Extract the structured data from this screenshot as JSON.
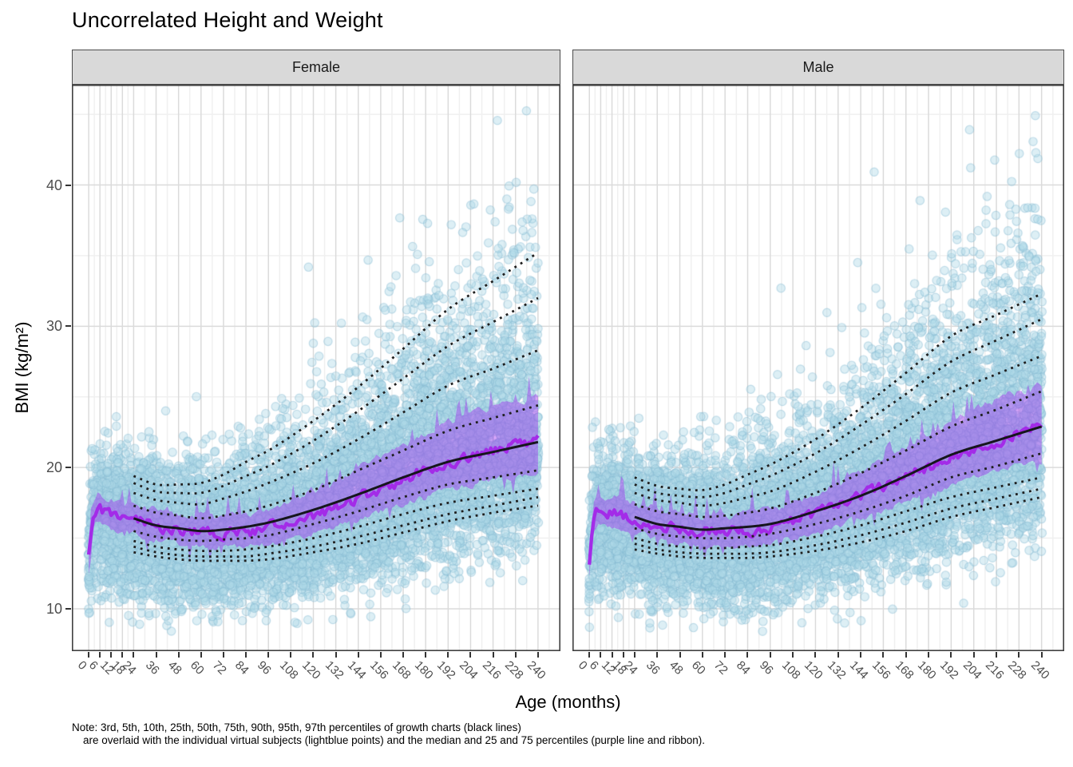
{
  "title": "Uncorrelated Height and Weight",
  "facets": [
    "Female",
    "Male"
  ],
  "axes": {
    "x_title": "Age (months)",
    "y_title": "BMI (kg/m²)",
    "x_tick_labels": [
      0,
      6,
      12,
      18,
      24,
      36,
      48,
      60,
      72,
      84,
      96,
      108,
      120,
      132,
      144,
      156,
      168,
      180,
      192,
      204,
      216,
      228,
      240
    ],
    "y_tick_labels": [
      10,
      20,
      30,
      40
    ]
  },
  "note_line1": "Note: 3rd, 5th, 10th, 25th, 50th, 75th, 90th, 95th, 97th percentiles of growth charts (black lines)",
  "note_line2": "are overlaid with the individual virtual subjects (lightblue points) and the median and 25 and 75 percentiles (purple line and ribbon).",
  "colors": {
    "point_fill": "#ADD8E6",
    "point_stroke": "#82B9D0",
    "point_alpha": 0.42,
    "ribbon": "#A020F0",
    "ribbon_alpha": 0.4,
    "median_line": "#A32BE8",
    "growth_median_line": "#16161D",
    "percentile_dots": "#1F1F1F",
    "strip_bg": "#D9D9D9",
    "strip_border": "#4D4D4D",
    "strip_text": "#1A1A1A",
    "panel_border": "#404040",
    "grid_major": "#DBDBDB",
    "grid_minor": "#F0F0F0",
    "axis_text": "#4D4D4D",
    "title_color": "#000000"
  },
  "chart_data": {
    "type": "scatter",
    "description": "Faceted scatter of simulated BMI vs age with growth-chart percentile curves (black dotted, 50th solid) and subject median/IQR (purple line and ribbon)",
    "layout": {
      "xlim": [
        -9,
        252
      ],
      "ylim": [
        7,
        47.1
      ],
      "x_major": [
        0,
        6,
        12,
        18,
        24,
        36,
        48,
        60,
        72,
        84,
        96,
        108,
        120,
        132,
        144,
        156,
        168,
        180,
        192,
        204,
        216,
        228,
        240
      ],
      "x_minor": [
        3,
        9,
        15,
        21,
        30,
        42,
        54,
        66,
        78,
        90,
        102,
        114,
        126,
        138,
        150,
        162,
        174,
        186,
        198,
        210,
        222,
        234,
        246
      ],
      "y_major": [
        10,
        20,
        30,
        40
      ],
      "y_minor": [
        15,
        25,
        35,
        45
      ],
      "grid": true,
      "legend": "none"
    },
    "percentile_ages": [
      24,
      36,
      48,
      60,
      72,
      84,
      96,
      120,
      144,
      168,
      192,
      216,
      240
    ],
    "subject_ages": [
      0,
      2,
      4,
      8,
      12,
      18,
      24,
      36,
      48,
      60,
      72,
      84,
      96,
      120,
      144,
      168,
      192,
      216,
      240
    ],
    "facets": [
      {
        "name": "Female",
        "growth_percentiles": {
          "P3": [
            14.0,
            13.7,
            13.5,
            13.4,
            13.4,
            13.4,
            13.5,
            14.0,
            14.6,
            15.4,
            16.2,
            16.8,
            17.3
          ],
          "P5": [
            14.4,
            14.0,
            13.8,
            13.7,
            13.7,
            13.7,
            13.9,
            14.4,
            15.1,
            15.9,
            16.7,
            17.3,
            17.9
          ],
          "P10": [
            14.8,
            14.4,
            14.2,
            14.1,
            14.1,
            14.2,
            14.4,
            15.0,
            15.8,
            16.7,
            17.5,
            18.0,
            18.5
          ],
          "P25": [
            15.5,
            15.1,
            14.9,
            14.8,
            14.9,
            15.0,
            15.2,
            16.0,
            16.9,
            17.9,
            18.8,
            19.3,
            19.8
          ],
          "P50": [
            16.4,
            15.9,
            15.7,
            15.5,
            15.6,
            15.8,
            16.1,
            17.0,
            18.1,
            19.3,
            20.4,
            21.1,
            21.8
          ],
          "P75": [
            17.3,
            16.8,
            16.6,
            16.4,
            16.6,
            16.9,
            17.3,
            18.4,
            19.8,
            21.2,
            22.6,
            23.5,
            24.4
          ],
          "P90": [
            18.2,
            17.7,
            17.5,
            17.4,
            17.8,
            18.3,
            18.9,
            20.3,
            22.0,
            23.9,
            25.8,
            27.0,
            28.3
          ],
          "P95": [
            18.9,
            18.3,
            18.2,
            18.2,
            18.7,
            19.4,
            20.1,
            21.9,
            24.0,
            26.3,
            28.6,
            30.3,
            32.0
          ],
          "P97": [
            19.4,
            18.8,
            18.8,
            18.9,
            19.5,
            20.4,
            21.2,
            23.3,
            25.7,
            28.4,
            31.2,
            33.2,
            35.2
          ]
        },
        "subjects": {
          "median": [
            13.6,
            16.3,
            17.0,
            16.9,
            16.7,
            16.5,
            16.3,
            15.9,
            15.6,
            15.4,
            15.3,
            15.4,
            15.7,
            16.6,
            17.8,
            19.1,
            20.3,
            21.2,
            21.8
          ],
          "q25": [
            12.6,
            15.3,
            16.0,
            15.9,
            15.7,
            15.5,
            15.3,
            14.9,
            14.6,
            14.4,
            14.3,
            14.3,
            14.6,
            15.3,
            16.3,
            17.4,
            18.4,
            19.1,
            19.5
          ],
          "q75": [
            14.6,
            17.3,
            18.0,
            17.9,
            17.7,
            17.6,
            17.4,
            17.0,
            16.7,
            16.6,
            16.5,
            16.7,
            17.1,
            18.3,
            19.9,
            21.6,
            23.2,
            24.3,
            25.0
          ]
        },
        "scatter_seed": 101
      },
      {
        "name": "Male",
        "growth_percentiles": {
          "P3": [
            14.2,
            13.9,
            13.7,
            13.6,
            13.6,
            13.6,
            13.7,
            14.1,
            14.7,
            15.5,
            16.5,
            17.2,
            17.9
          ],
          "P5": [
            14.6,
            14.2,
            14.0,
            13.9,
            13.9,
            13.9,
            14.0,
            14.5,
            15.2,
            16.1,
            17.1,
            17.8,
            18.5
          ],
          "P10": [
            15.0,
            14.6,
            14.4,
            14.3,
            14.3,
            14.4,
            14.5,
            15.1,
            15.9,
            16.9,
            17.9,
            18.6,
            19.3
          ],
          "P25": [
            15.7,
            15.3,
            15.1,
            15.0,
            15.0,
            15.1,
            15.3,
            16.0,
            16.9,
            18.0,
            19.3,
            20.1,
            21.0
          ],
          "P50": [
            16.5,
            16.0,
            15.8,
            15.6,
            15.7,
            15.8,
            16.0,
            16.9,
            18.0,
            19.4,
            20.9,
            21.9,
            22.9
          ],
          "P75": [
            17.4,
            16.9,
            16.7,
            16.5,
            16.6,
            16.8,
            17.1,
            18.2,
            19.6,
            21.2,
            22.9,
            24.1,
            25.4
          ],
          "P90": [
            18.2,
            17.7,
            17.5,
            17.3,
            17.5,
            17.9,
            18.3,
            19.7,
            21.4,
            23.3,
            25.3,
            26.6,
            27.9
          ],
          "P95": [
            18.8,
            18.2,
            18.0,
            17.9,
            18.2,
            18.8,
            19.4,
            21.0,
            23.0,
            25.2,
            27.5,
            29.0,
            30.5
          ],
          "P97": [
            19.3,
            18.7,
            18.5,
            18.4,
            18.8,
            19.5,
            20.2,
            22.0,
            24.2,
            26.7,
            29.3,
            30.8,
            32.3
          ]
        },
        "subjects": {
          "median": [
            13.4,
            16.1,
            16.9,
            16.9,
            16.8,
            16.6,
            16.4,
            16.0,
            15.7,
            15.5,
            15.5,
            15.6,
            15.8,
            16.7,
            17.9,
            19.3,
            20.7,
            21.9,
            22.9
          ],
          "q25": [
            12.4,
            15.1,
            15.9,
            15.9,
            15.8,
            15.6,
            15.4,
            15.0,
            14.7,
            14.5,
            14.4,
            14.5,
            14.7,
            15.4,
            16.4,
            17.6,
            18.8,
            19.8,
            20.3
          ],
          "q75": [
            14.4,
            17.1,
            17.9,
            17.9,
            17.8,
            17.7,
            17.5,
            17.1,
            16.8,
            16.6,
            16.6,
            16.8,
            17.0,
            18.1,
            19.7,
            21.5,
            23.3,
            24.8,
            25.8
          ]
        },
        "scatter_seed": 202
      }
    ],
    "scatter_model": {
      "n_per_facet": 9000,
      "age_range": [
        0,
        240
      ],
      "sigma_low": 0.19,
      "sigma_high_base": 0.105,
      "sigma_high_slope": 0.155,
      "point_radius": 5.2
    }
  }
}
